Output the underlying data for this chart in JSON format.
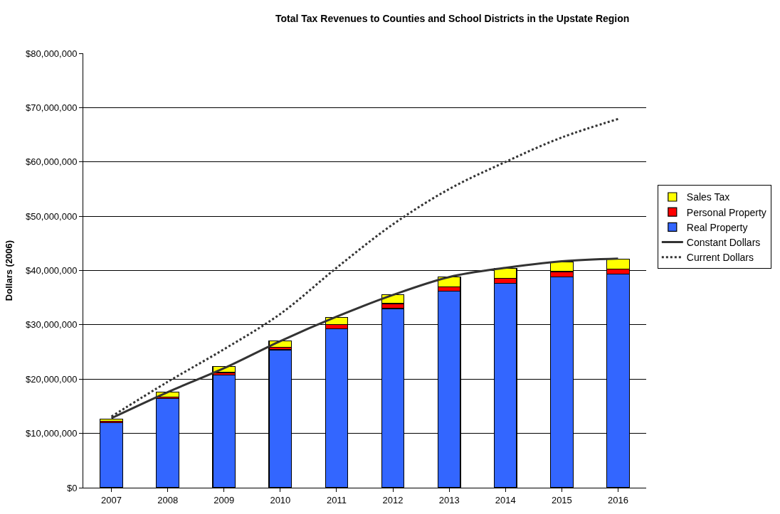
{
  "chart_data": {
    "type": "bar",
    "title": "Total Tax Revenues to Counties and School Districts in the Upstate Region",
    "ylabel": "Dollars (2006)",
    "categories": [
      "2007",
      "2008",
      "2009",
      "2010",
      "2011",
      "2012",
      "2013",
      "2014",
      "2015",
      "2016"
    ],
    "stacked": true,
    "series": [
      {
        "name": "Real Property",
        "color": "#3366ff",
        "values": [
          12000000,
          16400000,
          20800000,
          25400000,
          29300000,
          33000000,
          36200000,
          37600000,
          38800000,
          39300000
        ]
      },
      {
        "name": "Personal Property",
        "color": "#ff0000",
        "values": [
          200000,
          300000,
          400000,
          500000,
          800000,
          900000,
          800000,
          1000000,
          1000000,
          1000000
        ]
      },
      {
        "name": "Sales Tax",
        "color": "#ffff00",
        "values": [
          400000,
          900000,
          1100000,
          1100000,
          1300000,
          1600000,
          1800000,
          1800000,
          1800000,
          1800000
        ]
      },
      {
        "name": "Constant Dollars",
        "type": "line",
        "color": "#333333",
        "line_style": "solid",
        "values": [
          12800000,
          17600000,
          22000000,
          27000000,
          31500000,
          35500000,
          38800000,
          40500000,
          41700000,
          42200000
        ]
      },
      {
        "name": "Current Dollars",
        "type": "line",
        "color": "#333333",
        "line_style": "dotted",
        "values": [
          13100000,
          19500000,
          25500000,
          32000000,
          40500000,
          48500000,
          55000000,
          60000000,
          64500000,
          67900000
        ]
      }
    ],
    "ylim": [
      0,
      80000000
    ],
    "yticks": [
      {
        "value": 0,
        "label": "$0"
      },
      {
        "value": 10000000,
        "label": "$10,000,000"
      },
      {
        "value": 20000000,
        "label": "$20,000,000"
      },
      {
        "value": 30000000,
        "label": "$30,000,000"
      },
      {
        "value": 40000000,
        "label": "$40,000,000"
      },
      {
        "value": 50000000,
        "label": "$50,000,000"
      },
      {
        "value": 60000000,
        "label": "$60,000,000"
      },
      {
        "value": 70000000,
        "label": "$70,000,000"
      },
      {
        "value": 80000000,
        "label": "$80,000,000"
      }
    ],
    "grid": "y",
    "legend": "right",
    "marker": "none"
  }
}
